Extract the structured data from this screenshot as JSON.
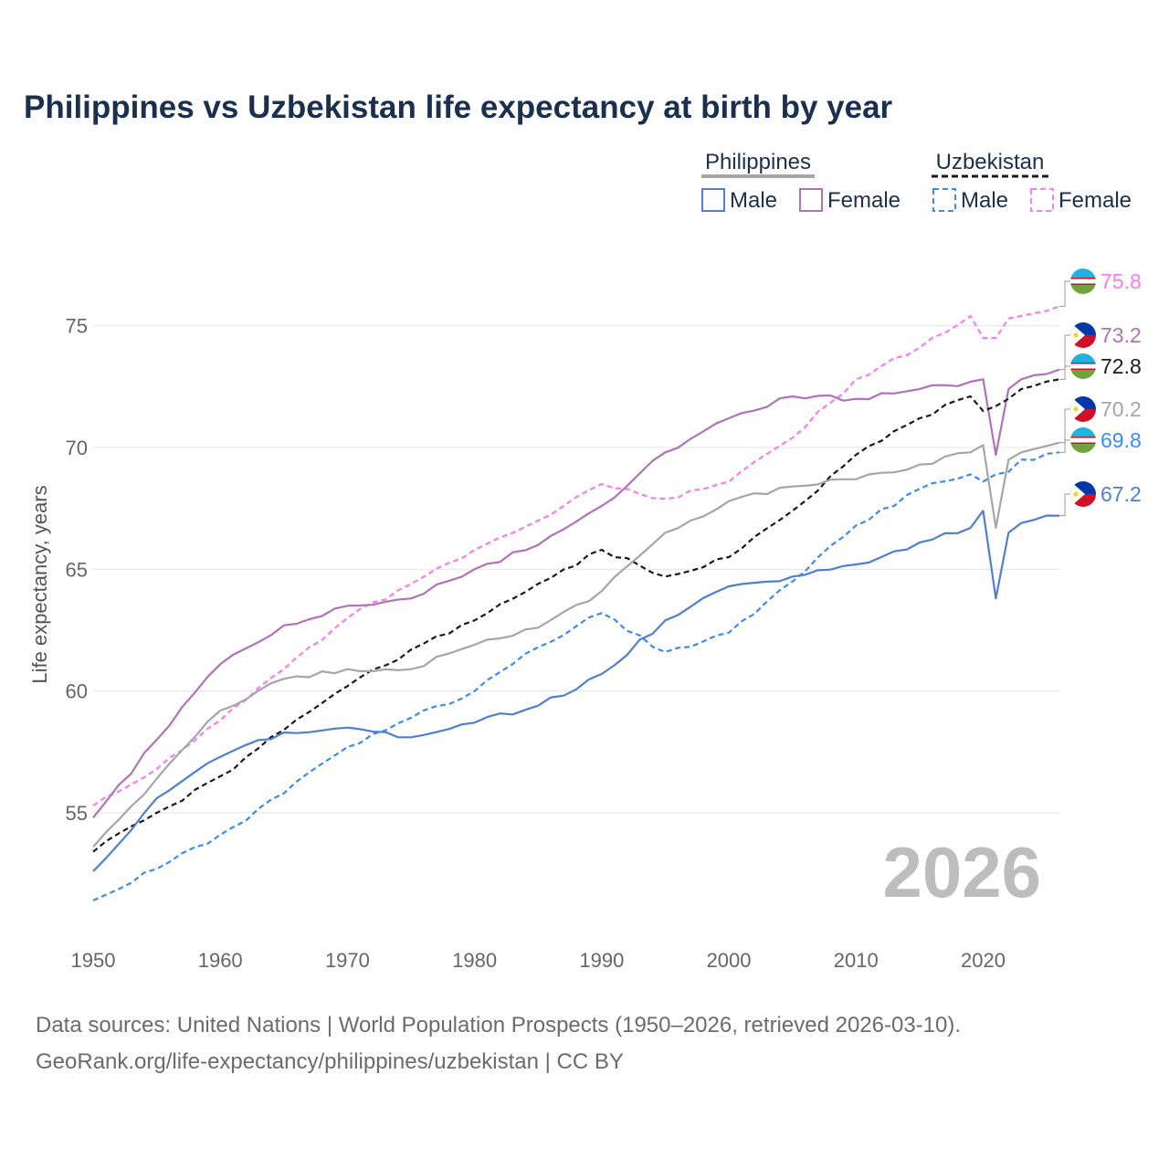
{
  "title": "Philippines vs Uzbekistan life expectancy at birth by year",
  "year_label": "2026",
  "source_line1": "Data sources: United Nations | World Population Prospects (1950–2026, retrieved 2026-03-10).",
  "source_line2": "GeoRank.org/life-expectancy/philippines/uzbekistan | CC BY",
  "legend": {
    "philippines": "Philippines",
    "uzbekistan": "Uzbekistan",
    "male": "Male",
    "female": "Female"
  },
  "colors": {
    "ph_male": "#4f7fcf",
    "ph_female": "#b072b8",
    "ph_total": "#a6a6a6",
    "uz_male": "#3d8bf0",
    "uz_female": "#f57ef0",
    "uz_total": "#1a1a1a"
  },
  "chart_data": {
    "type": "line",
    "ylabel": "Life expectancy, years",
    "xlabel": "",
    "xlim": [
      1950,
      2026
    ],
    "ylim": [
      50.5,
      77.5
    ],
    "xticks": [
      1950,
      1960,
      1970,
      1980,
      1990,
      2000,
      2010,
      2020
    ],
    "yticks": [
      55,
      60,
      65,
      70,
      75
    ],
    "anchors": [
      1950,
      1955,
      1960,
      1965,
      1970,
      1975,
      1980,
      1985,
      1990,
      1995,
      2000,
      2005,
      2010,
      2015,
      2019,
      2020,
      2021,
      2022,
      2023,
      2026
    ],
    "series": [
      {
        "key": "uz_female",
        "name": "Uzbekistan Female",
        "dash": true,
        "end_label": "75.8",
        "flag": "uz",
        "values": [
          55.3,
          56.8,
          58.8,
          60.9,
          63.0,
          64.4,
          65.8,
          67.0,
          68.5,
          67.9,
          68.6,
          70.4,
          72.8,
          74.1,
          75.4,
          74.5,
          74.5,
          75.3,
          75.4,
          75.8
        ]
      },
      {
        "key": "ph_female",
        "name": "Philippines Female",
        "dash": false,
        "end_label": "73.2",
        "flag": "ph",
        "values": [
          54.8,
          58.0,
          61.1,
          62.7,
          63.5,
          63.8,
          65.0,
          66.0,
          67.6,
          69.8,
          71.2,
          72.1,
          72.0,
          72.4,
          72.7,
          72.8,
          69.7,
          72.4,
          72.8,
          73.2
        ]
      },
      {
        "key": "uz_total",
        "name": "Uzbekistan",
        "dash": true,
        "end_label": "72.8",
        "flag": "uz",
        "values": [
          53.4,
          55.0,
          56.5,
          58.4,
          60.2,
          61.7,
          62.9,
          64.4,
          65.8,
          64.7,
          65.5,
          67.4,
          69.7,
          71.2,
          72.1,
          71.5,
          71.7,
          72.0,
          72.4,
          72.8
        ]
      },
      {
        "key": "ph_total",
        "name": "Philippines",
        "dash": false,
        "end_label": "70.2",
        "flag": "ph",
        "values": [
          53.6,
          56.4,
          59.2,
          60.5,
          60.9,
          60.9,
          61.9,
          62.6,
          64.1,
          66.5,
          67.8,
          68.4,
          68.7,
          69.3,
          69.8,
          70.1,
          66.7,
          69.5,
          69.8,
          70.2
        ]
      },
      {
        "key": "uz_male",
        "name": "Uzbekistan Male",
        "dash": true,
        "end_label": "69.8",
        "flag": "uz",
        "values": [
          51.4,
          52.7,
          54.1,
          55.8,
          57.7,
          58.9,
          60.0,
          61.8,
          63.2,
          61.6,
          62.4,
          64.5,
          66.8,
          68.3,
          68.9,
          68.6,
          68.9,
          69.0,
          69.5,
          69.8
        ]
      },
      {
        "key": "ph_male",
        "name": "Philippines Male",
        "dash": false,
        "end_label": "67.2",
        "flag": "ph",
        "values": [
          52.6,
          55.6,
          57.3,
          58.3,
          58.5,
          58.1,
          58.7,
          59.4,
          60.7,
          62.9,
          64.3,
          64.7,
          65.2,
          66.1,
          66.7,
          67.4,
          63.8,
          66.5,
          66.9,
          67.2
        ]
      }
    ]
  }
}
